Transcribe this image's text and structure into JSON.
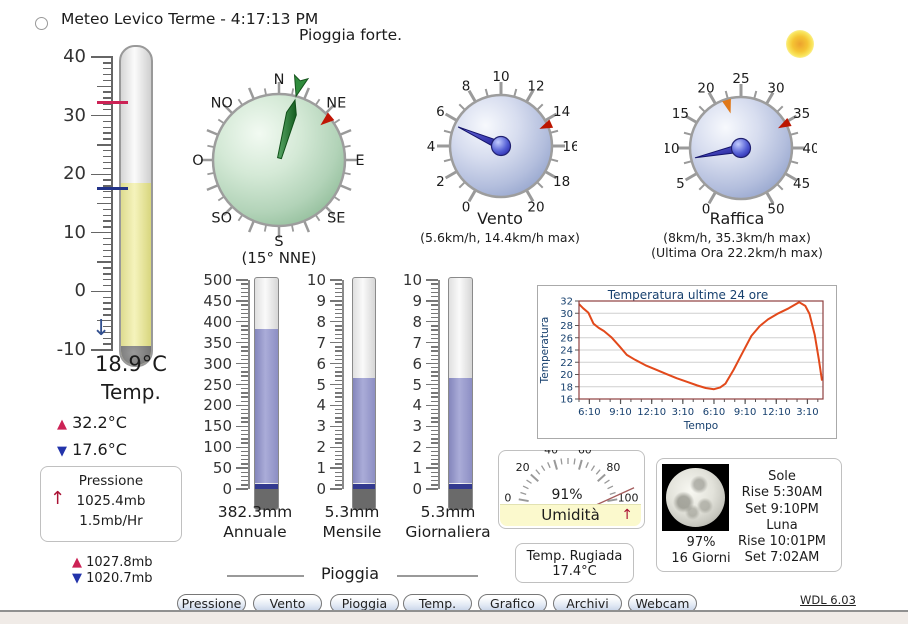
{
  "window": {
    "title": "Meteo Levico Terme - 4:17:13 PM",
    "condition": "Pioggia forte.",
    "version": "WDL 6.03"
  },
  "thermometer": {
    "value": 18.9,
    "value_label": "18.9°C",
    "title": "Temp.",
    "high": 32.2,
    "high_label": "32.2°C",
    "low": 17.6,
    "low_label": "17.6°C",
    "scale_min": -10,
    "scale_max": 40,
    "scale_labels": [
      "40",
      "30",
      "20",
      "10",
      "0",
      "-10"
    ],
    "trend_arrow": "↓"
  },
  "pressure": {
    "title": "Pressione",
    "value_label": "1025.4mb",
    "trend_label": "1.5mb/Hr",
    "trend_arrow": "↑",
    "high_label": "1027.8mb",
    "low_label": "1020.7mb"
  },
  "compass": {
    "direction_labels": [
      "N",
      "NE",
      "E",
      "SE",
      "S",
      "SO",
      "O",
      "NO"
    ],
    "direction_deg": 15,
    "gust_direction_deg": 50,
    "caption": "(15° NNE)"
  },
  "wind_gauge": {
    "title": "Vento",
    "caption": "(5.6km/h, 14.4km/h max)",
    "min": 0,
    "max": 20,
    "tick_step": 1,
    "label_step": 2,
    "value": 5.6,
    "max_value": 14.4,
    "tick_labels": [
      "0",
      "2",
      "4",
      "6",
      "8",
      "10",
      "12",
      "14",
      "16",
      "18",
      "20"
    ]
  },
  "gust_gauge": {
    "title": "Raffica",
    "caption": "(8km/h, 35.3km/h max)",
    "caption2": "(Ultima Ora 22.2km/h max)",
    "min": 0,
    "max": 50,
    "tick_step": 2.5,
    "label_step": 5,
    "value": 8,
    "max_value": 35.3,
    "last_hour_max": 22.2,
    "tick_labels": [
      "0",
      "5",
      "10",
      "15",
      "20",
      "25",
      "30",
      "35",
      "40",
      "45",
      "50"
    ]
  },
  "rain": {
    "section_label": "Pioggia",
    "bars": [
      {
        "name": "Annuale",
        "value": 382.3,
        "value_label": "382.3mm",
        "max": 500,
        "label_step": 50
      },
      {
        "name": "Mensile",
        "value": 5.3,
        "value_label": "5.3mm",
        "max": 10,
        "label_step": 1
      },
      {
        "name": "Giornaliera",
        "value": 5.3,
        "value_label": "5.3mm",
        "max": 10,
        "label_step": 1
      }
    ]
  },
  "humidity": {
    "title": "Umidità",
    "value": 91,
    "value_label": "91%",
    "scale_labels": [
      "0",
      "20",
      "40",
      "60",
      "80",
      "100"
    ],
    "trend_arrow": "↑"
  },
  "dew_point": {
    "title": "Temp. Rugiada",
    "value_label": "17.4°C"
  },
  "astro": {
    "sun_title": "Sole",
    "sun_rise": "Rise 5:30AM",
    "sun_set": "Set 9:10PM",
    "moon_title": "Luna",
    "moon_rise": "Rise 10:01PM",
    "moon_set": "Set 7:02AM",
    "moon_illumination": "97%",
    "moon_age": "16 Giorni"
  },
  "chart_data": {
    "type": "line",
    "title": "Temperatura ultime 24 ore",
    "xlabel": "Tempo",
    "ylabel": "Temperatura",
    "ylim": [
      16,
      32
    ],
    "ytick_step": 2,
    "xlim": [
      0,
      23.5
    ],
    "grid": "horizontal",
    "legend": "none",
    "line_color": "#e2491b",
    "xticks": [
      {
        "pos": 1,
        "label": "6:10"
      },
      {
        "pos": 4,
        "label": "9:10"
      },
      {
        "pos": 7,
        "label": "12:10"
      },
      {
        "pos": 10,
        "label": "3:10"
      },
      {
        "pos": 13,
        "label": "6:10"
      },
      {
        "pos": 16,
        "label": "9:10"
      },
      {
        "pos": 19,
        "label": "12:10"
      },
      {
        "pos": 22,
        "label": "3:10"
      }
    ],
    "points": [
      [
        0,
        31.5
      ],
      [
        0.4,
        30.8
      ],
      [
        0.9,
        30.1
      ],
      [
        1.4,
        28.3
      ],
      [
        1.9,
        27.6
      ],
      [
        2.4,
        27.1
      ],
      [
        3.1,
        26.1
      ],
      [
        3.9,
        24.6
      ],
      [
        4.6,
        23.2
      ],
      [
        5.4,
        22.4
      ],
      [
        6.4,
        21.5
      ],
      [
        7.4,
        20.8
      ],
      [
        8.4,
        20.1
      ],
      [
        9.4,
        19.4
      ],
      [
        10.4,
        18.8
      ],
      [
        11.4,
        18.2
      ],
      [
        12.2,
        17.8
      ],
      [
        13,
        17.6
      ],
      [
        13.6,
        17.9
      ],
      [
        14.1,
        18.5
      ],
      [
        14.9,
        20.8
      ],
      [
        15.7,
        23.4
      ],
      [
        16.6,
        26.3
      ],
      [
        17.4,
        27.9
      ],
      [
        18.2,
        29
      ],
      [
        19.2,
        30
      ],
      [
        20.2,
        30.8
      ],
      [
        21.2,
        31.8
      ],
      [
        21.8,
        31.2
      ],
      [
        22.2,
        29.9
      ],
      [
        22.7,
        26.5
      ],
      [
        23.1,
        22.5
      ],
      [
        23.4,
        19
      ]
    ]
  },
  "nav": {
    "buttons": [
      "Pressione",
      "Vento",
      "Pioggia",
      "Temp.",
      "Grafico",
      "Archivi",
      "Webcam"
    ]
  }
}
